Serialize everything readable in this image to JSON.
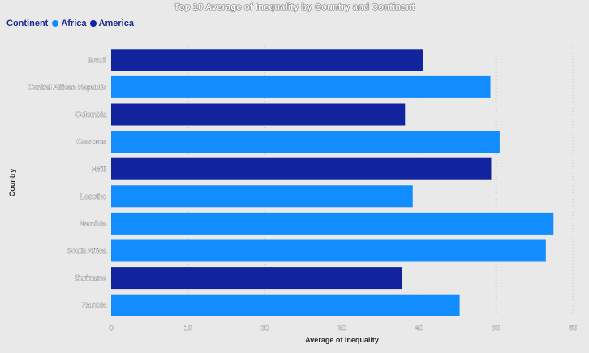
{
  "chart_data": {
    "type": "bar",
    "orientation": "horizontal",
    "title": "Top 10 Average of Inequality by Country and Continent",
    "xlabel": "Average of Inequality",
    "ylabel": "Country",
    "xlim": [
      0,
      60
    ],
    "xticks": [
      0,
      10,
      20,
      30,
      40,
      50,
      60
    ],
    "grid": "vertical",
    "legend": {
      "title": "Continent",
      "placement": "top-left",
      "entries": [
        {
          "name": "Africa",
          "color": "#118dff"
        },
        {
          "name": "America",
          "color": "#12239e"
        }
      ]
    },
    "categories": [
      "Brazil",
      "Central African Republic",
      "Colombia",
      "Comoros",
      "Haiti",
      "Lesotho",
      "Namibia",
      "South Africa",
      "Suriname",
      "Zambia"
    ],
    "continents": [
      "America",
      "Africa",
      "America",
      "Africa",
      "America",
      "Africa",
      "Africa",
      "Africa",
      "America",
      "Africa"
    ],
    "values": [
      40.5,
      49.3,
      38.2,
      50.5,
      49.4,
      39.2,
      57.5,
      56.5,
      37.8,
      45.3
    ]
  }
}
